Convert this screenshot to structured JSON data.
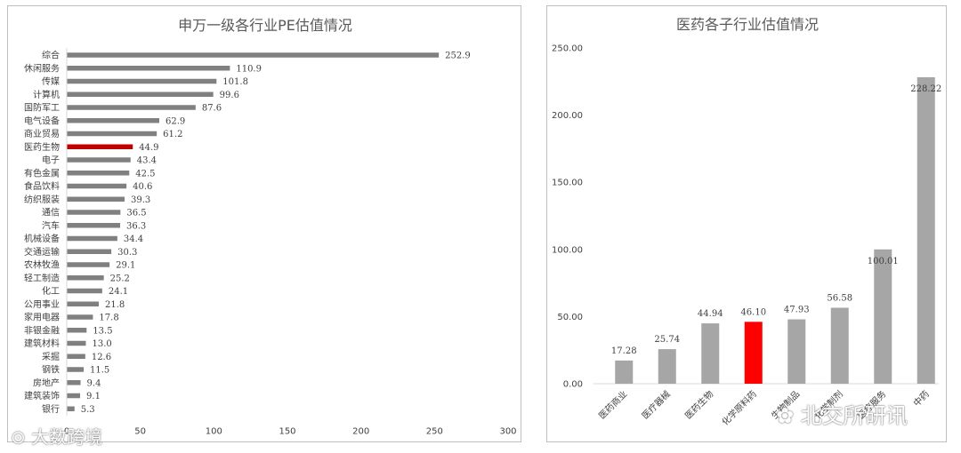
{
  "chart_data": [
    {
      "type": "bar",
      "orientation": "horizontal",
      "title": "申万一级各行业PE估值情况",
      "categories": [
        "综合",
        "休闲服务",
        "传媒",
        "计算机",
        "国防军工",
        "电气设备",
        "商业贸易",
        "医药生物",
        "电子",
        "有色金属",
        "食品饮料",
        "纺织服装",
        "通信",
        "汽车",
        "机械设备",
        "交通运输",
        "农林牧渔",
        "轻工制造",
        "化工",
        "公用事业",
        "家用电器",
        "非银金融",
        "建筑材料",
        "采掘",
        "钢铁",
        "房地产",
        "建筑装饰",
        "银行"
      ],
      "values": [
        252.9,
        110.9,
        101.8,
        99.6,
        87.6,
        62.9,
        61.2,
        44.9,
        43.4,
        42.5,
        40.6,
        39.3,
        36.5,
        36.3,
        34.4,
        30.3,
        29.1,
        25.2,
        24.1,
        21.8,
        17.8,
        13.5,
        13.0,
        12.6,
        11.5,
        9.4,
        9.1,
        5.3
      ],
      "value_labels": [
        "252.9",
        "110.9",
        "101.8",
        "99.6",
        "87.6",
        "62.9",
        "61.2",
        "44.9",
        "43.4",
        "42.5",
        "40.6",
        "39.3",
        "36.5",
        "36.3",
        "34.4",
        "30.3",
        "29.1",
        "25.2",
        "24.1",
        "21.8",
        "17.8",
        "13.5",
        "13.0",
        "12.6",
        "11.5",
        "9.4",
        "9.1",
        "5.3"
      ],
      "highlight_category": "医药生物",
      "xlim": [
        0,
        300
      ],
      "xticks": [
        "0",
        "50",
        "100",
        "150",
        "200",
        "250",
        "300"
      ],
      "xtick_values": [
        0,
        50,
        100,
        150,
        200,
        250,
        300
      ],
      "grid": false,
      "colors": {
        "bar": "#808080",
        "highlight": "#c00000"
      }
    },
    {
      "type": "bar",
      "orientation": "vertical",
      "title": "医药各子行业估值情况",
      "categories": [
        "医药商业",
        "医疗器械",
        "医药生物",
        "化学原料药",
        "生物制品",
        "化学制剂",
        "医疗服务",
        "中药"
      ],
      "values": [
        17.28,
        25.74,
        44.94,
        46.1,
        47.93,
        56.58,
        100.01,
        228.22
      ],
      "value_labels": [
        "17.28",
        "25.74",
        "44.94",
        "46.10",
        "47.93",
        "56.58",
        "100.01",
        "228.22"
      ],
      "highlight_category": "化学原料药",
      "ylim": [
        0,
        250
      ],
      "yticks": [
        "0.00",
        "50.00",
        "100.00",
        "150.00",
        "200.00",
        "250.00"
      ],
      "ytick_values": [
        0,
        50,
        100,
        150,
        200,
        250
      ],
      "grid": false,
      "colors": {
        "bar": "#a6a6a6",
        "highlight": "#ff0000"
      }
    }
  ],
  "watermarks": {
    "left": "大数跨境",
    "right": "北交所研讯"
  }
}
